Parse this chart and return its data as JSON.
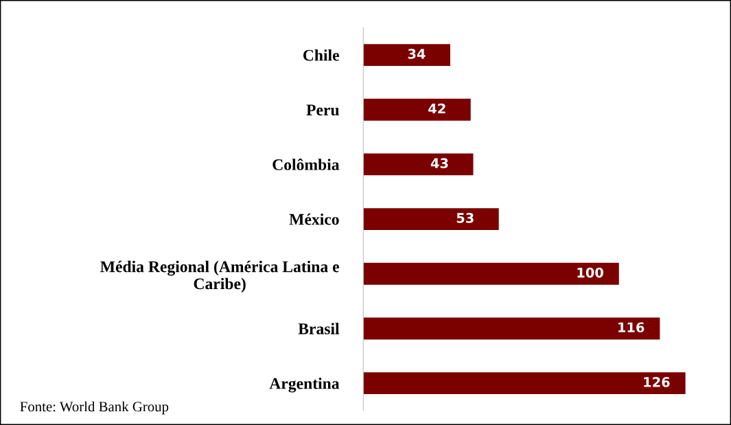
{
  "chart_data": {
    "type": "bar",
    "orientation": "horizontal",
    "categories": [
      "Chile",
      "Peru",
      "Colômbia",
      "México",
      "Média Regional (América Latina e\nCaribe)",
      "Brasil",
      "Argentina"
    ],
    "values": [
      34,
      42,
      43,
      53,
      100,
      116,
      126
    ],
    "color": "#7b0000",
    "data_labels": true,
    "grid": false,
    "legend": false,
    "annotations": [
      "Fonte: World Bank Group"
    ]
  }
}
